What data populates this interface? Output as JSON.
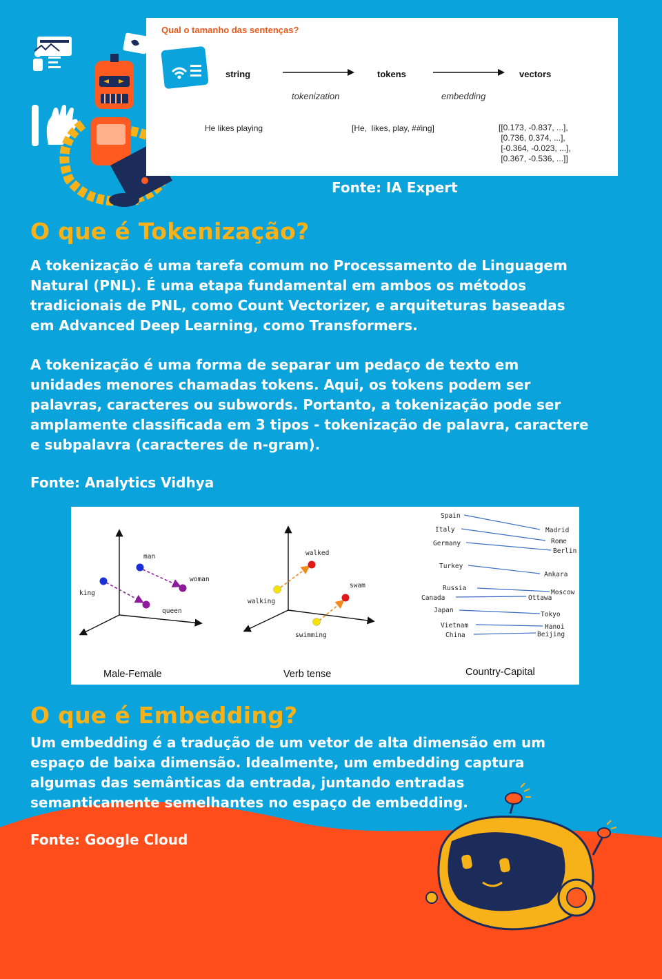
{
  "tokenization_card": {
    "question": "Qual o tamanho das sentenças?",
    "pipeline": {
      "string": "string",
      "tokens": "tokens",
      "vectors": "vectors",
      "tokenization": "tokenization",
      "embedding": "embedding"
    },
    "example_sentence": "He likes playing",
    "example_tokens": "[He,  likes, play, ##ing]",
    "example_vectors": [
      "[[0.173, -0.837, ...],",
      " [0.736, 0.374, ...],",
      " [-0.364, -0.023, ...],",
      " [0.367, -0.536, ...]]"
    ]
  },
  "source_ia_expert": "Fonte: IA Expert",
  "section_tokenizacao": {
    "title": "O que é Tokenização?",
    "paragraphs": [
      [
        "A tokenização é uma tarefa comum no Processamento de Linguagem",
        "Natural (PNL). É uma etapa fundamental em ambos os métodos",
        "tradicionais de PNL, como Count Vectorizer, e arquiteturas baseadas",
        "em Advanced Deep Learning, como Transformers."
      ],
      [
        "A tokenização é uma forma de separar um pedaço de texto em",
        "unidades menores chamadas tokens. Aqui, os tokens podem ser",
        "palavras, caracteres ou subwords. Portanto, a tokenização pode ser",
        "amplamente classificada em 3 tipos - tokenização de palavra, caractere",
        "e subpalavra (caracteres de n-gram)."
      ]
    ],
    "source": "Fonte: Analytics Vidhya"
  },
  "embedding_figure": {
    "panels": [
      {
        "caption": "Male-Female",
        "points": [
          {
            "label": "man",
            "color": "#1a2fd6"
          },
          {
            "label": "woman",
            "color": "#8e1b9c"
          },
          {
            "label": "king",
            "color": "#1a2fd6"
          },
          {
            "label": "queen",
            "color": "#8e1b9c"
          }
        ]
      },
      {
        "caption": "Verb tense",
        "points": [
          {
            "label": "walked",
            "color": "#e01818"
          },
          {
            "label": "walking",
            "color": "#f5e400"
          },
          {
            "label": "swam",
            "color": "#e01818"
          },
          {
            "label": "swimming",
            "color": "#f5e400"
          }
        ]
      },
      {
        "caption": "Country-Capital",
        "countries": [
          "Spain",
          "Italy",
          "Germany",
          "Turkey",
          "Russia",
          "Canada",
          "Japan",
          "Vietnam",
          "China"
        ],
        "capitals": [
          "Madrid",
          "Rome",
          "Berlin",
          "Ankara",
          "Moscow",
          "Ottawa",
          "Tokyo",
          "Hanoi",
          "Beijing"
        ]
      }
    ],
    "colors": {
      "arrow_male_female": "#8e1b9c",
      "arrow_verb": "#f08a1c",
      "capital_lines": "#3a6fc4"
    }
  },
  "section_embedding": {
    "title": "O que é Embedding?",
    "paragraph": [
      "Um embedding é a tradução de um vetor de alta dimensão em um",
      "espaço de baixa dimensão. Idealmente, um embedding captura",
      "algumas das semânticas da entrada, juntando entradas",
      "semanticamente semelhantes no espaço de embedding."
    ],
    "source": "Fonte: Google Cloud"
  },
  "theme": {
    "background": "#0aa3dc",
    "accent_heading": "#f7b21a",
    "wave": "#ff4d1c",
    "card_question": "#e8591a"
  }
}
